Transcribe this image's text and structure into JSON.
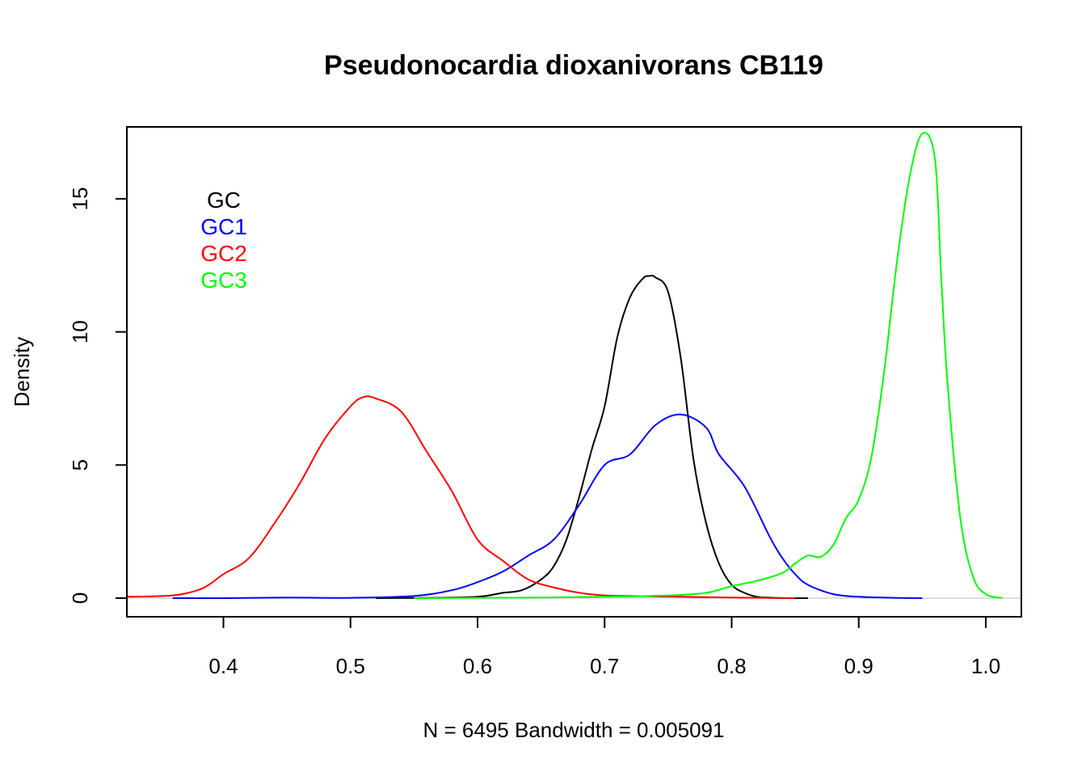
{
  "chart_data": {
    "type": "line",
    "title": "Pseudonocardia dioxanivorans CB119",
    "xlabel": "N = 6495   Bandwidth = 0.005091",
    "ylabel": "Density",
    "xlim": [
      0.324,
      1.028
    ],
    "ylim": [
      -0.7,
      17.7
    ],
    "xticks": [
      0.4,
      0.5,
      0.6,
      0.7,
      0.8,
      0.9,
      1.0
    ],
    "xtick_labels": [
      "0.4",
      "0.5",
      "0.6",
      "0.7",
      "0.8",
      "0.9",
      "1.0"
    ],
    "yticks": [
      0,
      5,
      10,
      15
    ],
    "ytick_labels": [
      "0",
      "5",
      "10",
      "15"
    ],
    "grid": false,
    "legend_position": "top-left",
    "baseline": {
      "y": 0,
      "color": "#bebebe"
    },
    "series": [
      {
        "name": "GC",
        "color": "#000000",
        "x": [
          0.52,
          0.56,
          0.6,
          0.62,
          0.635,
          0.65,
          0.66,
          0.67,
          0.68,
          0.69,
          0.7,
          0.71,
          0.72,
          0.73,
          0.735,
          0.74,
          0.75,
          0.76,
          0.77,
          0.78,
          0.79,
          0.8,
          0.81,
          0.82,
          0.83,
          0.84,
          0.85,
          0.86
        ],
        "y": [
          0.0,
          0.01,
          0.05,
          0.2,
          0.3,
          0.7,
          1.2,
          2.2,
          3.8,
          5.6,
          7.2,
          9.8,
          11.3,
          12.0,
          12.1,
          12.05,
          11.5,
          9.0,
          5.2,
          2.8,
          1.3,
          0.5,
          0.2,
          0.05,
          0.02,
          0.0,
          0.0,
          0.0
        ]
      },
      {
        "name": "GC1",
        "color": "#0000ff",
        "x": [
          0.36,
          0.4,
          0.45,
          0.5,
          0.55,
          0.58,
          0.6,
          0.62,
          0.64,
          0.66,
          0.68,
          0.7,
          0.72,
          0.74,
          0.76,
          0.78,
          0.79,
          0.81,
          0.83,
          0.84,
          0.85,
          0.86,
          0.88,
          0.9,
          0.93,
          0.95
        ],
        "y": [
          0.0,
          0.0,
          0.02,
          0.01,
          0.08,
          0.3,
          0.6,
          1.0,
          1.6,
          2.2,
          3.5,
          5.0,
          5.4,
          6.5,
          6.9,
          6.4,
          5.4,
          4.2,
          2.3,
          1.5,
          0.9,
          0.5,
          0.15,
          0.05,
          0.01,
          0.0
        ]
      },
      {
        "name": "GC2",
        "color": "#ff0000",
        "x": [
          0.324,
          0.36,
          0.38,
          0.39,
          0.4,
          0.42,
          0.44,
          0.46,
          0.48,
          0.5,
          0.51,
          0.52,
          0.54,
          0.56,
          0.58,
          0.6,
          0.62,
          0.64,
          0.66,
          0.68,
          0.7,
          0.72,
          0.76,
          0.8,
          0.85
        ],
        "y": [
          0.05,
          0.1,
          0.3,
          0.55,
          0.9,
          1.5,
          2.8,
          4.3,
          6.0,
          7.2,
          7.55,
          7.5,
          7.0,
          5.5,
          4.0,
          2.2,
          1.4,
          0.7,
          0.4,
          0.2,
          0.1,
          0.08,
          0.05,
          0.02,
          0.0
        ]
      },
      {
        "name": "GC3",
        "color": "#00ff00",
        "x": [
          0.55,
          0.6,
          0.65,
          0.7,
          0.75,
          0.78,
          0.8,
          0.82,
          0.84,
          0.85,
          0.86,
          0.87,
          0.88,
          0.89,
          0.9,
          0.91,
          0.92,
          0.93,
          0.94,
          0.95,
          0.96,
          0.965,
          0.97,
          0.98,
          0.99,
          1.0,
          1.013
        ],
        "y": [
          0.0,
          0.01,
          0.02,
          0.05,
          0.1,
          0.2,
          0.45,
          0.65,
          0.95,
          1.3,
          1.6,
          1.55,
          2.0,
          3.0,
          3.7,
          5.3,
          8.5,
          12.6,
          15.8,
          17.45,
          16.5,
          12.0,
          8.0,
          3.0,
          0.8,
          0.15,
          0.0
        ]
      }
    ]
  }
}
